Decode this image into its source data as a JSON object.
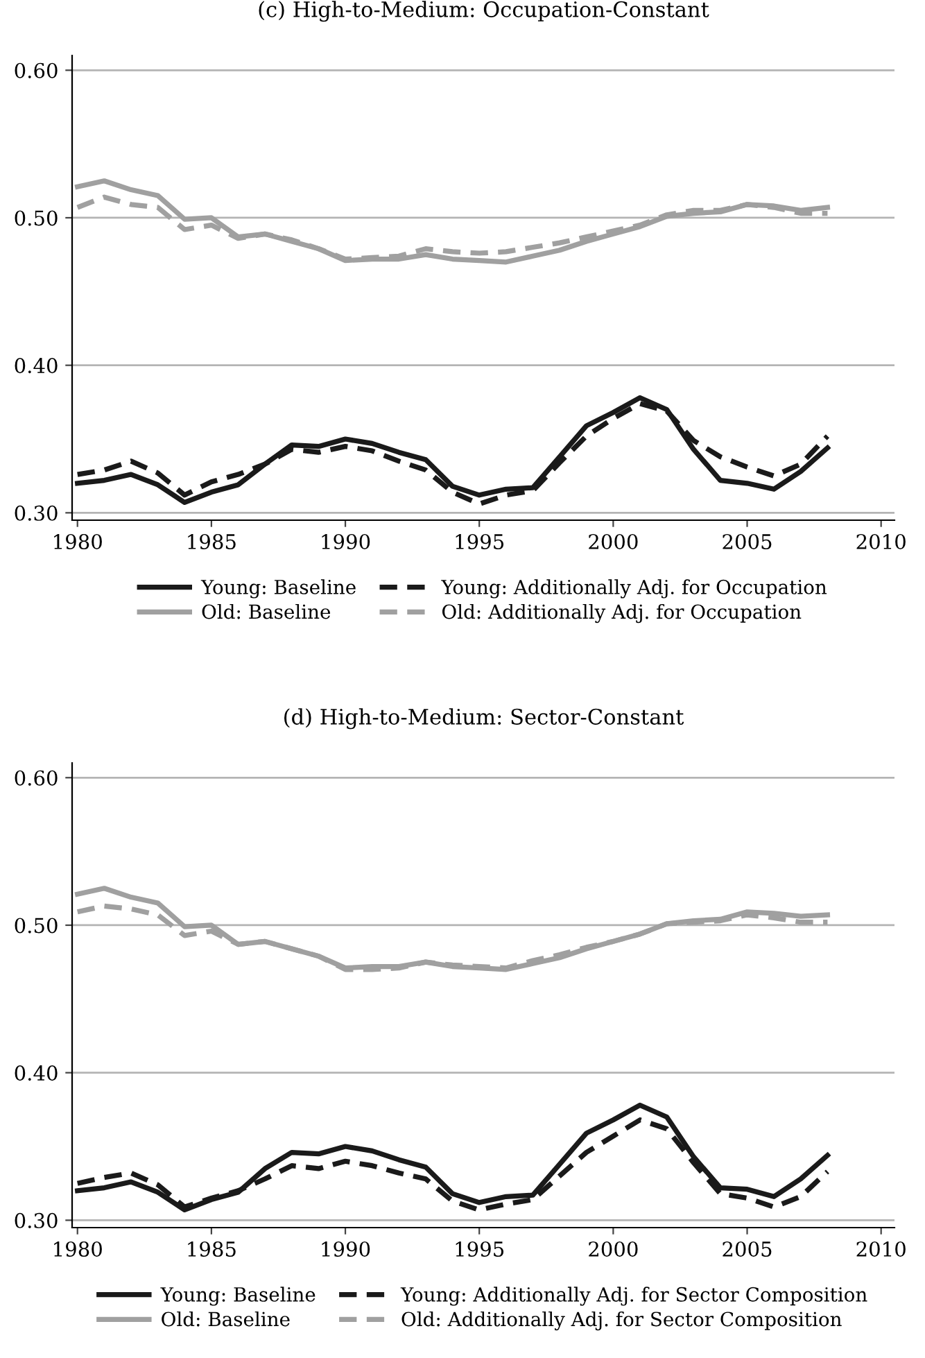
{
  "chart_data": [
    {
      "type": "line",
      "title": "(c) High-to-Medium: Occupation-Constant",
      "x": [
        1980,
        1981,
        1982,
        1983,
        1984,
        1985,
        1986,
        1987,
        1988,
        1989,
        1990,
        1991,
        1992,
        1993,
        1994,
        1995,
        1996,
        1997,
        1998,
        1999,
        2000,
        2001,
        2002,
        2003,
        2004,
        2005,
        2006,
        2007,
        2008
      ],
      "xlim": [
        1979.8,
        2010.5
      ],
      "xticks": [
        1980,
        1985,
        1990,
        1995,
        2000,
        2005,
        2010
      ],
      "ylim": [
        0.295,
        0.61
      ],
      "yticks": [
        {
          "value": 0.3,
          "label": "0.30"
        },
        {
          "value": 0.4,
          "label": "0.40"
        },
        {
          "value": 0.5,
          "label": "0.50"
        },
        {
          "value": 0.6,
          "label": "0.60"
        }
      ],
      "grid": "y",
      "legend": "bottom",
      "marker": "none",
      "series": [
        {
          "name": "Young: Baseline",
          "color": "#1a1a1a",
          "line_style": "solid",
          "values": [
            0.32,
            0.322,
            0.326,
            0.319,
            0.307,
            0.314,
            0.319,
            0.333,
            0.346,
            0.345,
            0.35,
            0.347,
            0.341,
            0.336,
            0.318,
            0.312,
            0.316,
            0.317,
            0.338,
            0.359,
            0.368,
            0.378,
            0.37,
            0.343,
            0.322,
            0.32,
            0.316,
            0.328,
            0.344
          ]
        },
        {
          "name": "Old: Baseline",
          "color": "#a0a0a0",
          "line_style": "solid",
          "values": [
            0.521,
            0.525,
            0.519,
            0.515,
            0.499,
            0.5,
            0.487,
            0.489,
            0.484,
            0.479,
            0.471,
            0.472,
            0.472,
            0.475,
            0.472,
            0.471,
            0.47,
            0.474,
            0.478,
            0.484,
            0.489,
            0.494,
            0.501,
            0.503,
            0.504,
            0.509,
            0.508,
            0.505,
            0.507
          ]
        },
        {
          "name": "Young: Additionally Adj. for Occupation",
          "color": "#1a1a1a",
          "line_style": "dashed",
          "values": [
            0.326,
            0.329,
            0.335,
            0.327,
            0.312,
            0.321,
            0.326,
            0.333,
            0.343,
            0.341,
            0.345,
            0.342,
            0.335,
            0.329,
            0.314,
            0.306,
            0.312,
            0.315,
            0.334,
            0.352,
            0.364,
            0.374,
            0.369,
            0.349,
            0.338,
            0.331,
            0.325,
            0.333,
            0.352
          ]
        },
        {
          "name": "Old: Additionally Adj. for Occupation",
          "color": "#a0a0a0",
          "line_style": "dashed",
          "values": [
            0.507,
            0.514,
            0.509,
            0.507,
            0.492,
            0.495,
            0.486,
            0.489,
            0.485,
            0.479,
            0.472,
            0.473,
            0.474,
            0.479,
            0.477,
            0.476,
            0.477,
            0.48,
            0.483,
            0.487,
            0.491,
            0.495,
            0.502,
            0.505,
            0.505,
            0.509,
            0.507,
            0.503,
            0.503
          ]
        }
      ]
    },
    {
      "type": "line",
      "title": "(d) High-to-Medium: Sector-Constant",
      "x": [
        1980,
        1981,
        1982,
        1983,
        1984,
        1985,
        1986,
        1987,
        1988,
        1989,
        1990,
        1991,
        1992,
        1993,
        1994,
        1995,
        1996,
        1997,
        1998,
        1999,
        2000,
        2001,
        2002,
        2003,
        2004,
        2005,
        2006,
        2007,
        2008
      ],
      "xlim": [
        1979.8,
        2010.5
      ],
      "xticks": [
        1980,
        1985,
        1990,
        1995,
        2000,
        2005,
        2010
      ],
      "ylim": [
        0.295,
        0.61
      ],
      "yticks": [
        {
          "value": 0.3,
          "label": "0.30"
        },
        {
          "value": 0.4,
          "label": "0.40"
        },
        {
          "value": 0.5,
          "label": "0.50"
        },
        {
          "value": 0.6,
          "label": "0.60"
        }
      ],
      "grid": "y",
      "legend": "bottom",
      "marker": "none",
      "series": [
        {
          "name": "Young: Baseline",
          "color": "#1a1a1a",
          "line_style": "solid",
          "values": [
            0.32,
            0.322,
            0.326,
            0.319,
            0.307,
            0.314,
            0.319,
            0.335,
            0.346,
            0.345,
            0.35,
            0.347,
            0.341,
            0.336,
            0.318,
            0.312,
            0.316,
            0.317,
            0.338,
            0.359,
            0.368,
            0.378,
            0.37,
            0.343,
            0.322,
            0.321,
            0.316,
            0.328,
            0.344
          ]
        },
        {
          "name": "Old: Baseline",
          "color": "#a0a0a0",
          "line_style": "solid",
          "values": [
            0.521,
            0.525,
            0.519,
            0.515,
            0.499,
            0.5,
            0.487,
            0.489,
            0.484,
            0.479,
            0.471,
            0.472,
            0.472,
            0.475,
            0.472,
            0.471,
            0.47,
            0.474,
            0.478,
            0.484,
            0.489,
            0.494,
            0.501,
            0.503,
            0.504,
            0.509,
            0.508,
            0.506,
            0.507
          ]
        },
        {
          "name": "Young: Additionally Adj. for Sector Composition",
          "color": "#1a1a1a",
          "line_style": "dashed",
          "values": [
            0.325,
            0.329,
            0.332,
            0.324,
            0.309,
            0.315,
            0.32,
            0.328,
            0.337,
            0.335,
            0.34,
            0.337,
            0.332,
            0.328,
            0.313,
            0.307,
            0.311,
            0.314,
            0.33,
            0.346,
            0.357,
            0.368,
            0.362,
            0.339,
            0.318,
            0.315,
            0.309,
            0.316,
            0.333
          ]
        },
        {
          "name": "Old: Additionally Adj. for Sector Composition",
          "color": "#a0a0a0",
          "line_style": "dashed",
          "values": [
            0.509,
            0.513,
            0.511,
            0.507,
            0.493,
            0.496,
            0.487,
            0.489,
            0.484,
            0.479,
            0.47,
            0.47,
            0.471,
            0.475,
            0.473,
            0.472,
            0.471,
            0.476,
            0.48,
            0.485,
            0.489,
            0.494,
            0.501,
            0.502,
            0.503,
            0.507,
            0.505,
            0.502,
            0.502
          ]
        }
      ]
    }
  ]
}
